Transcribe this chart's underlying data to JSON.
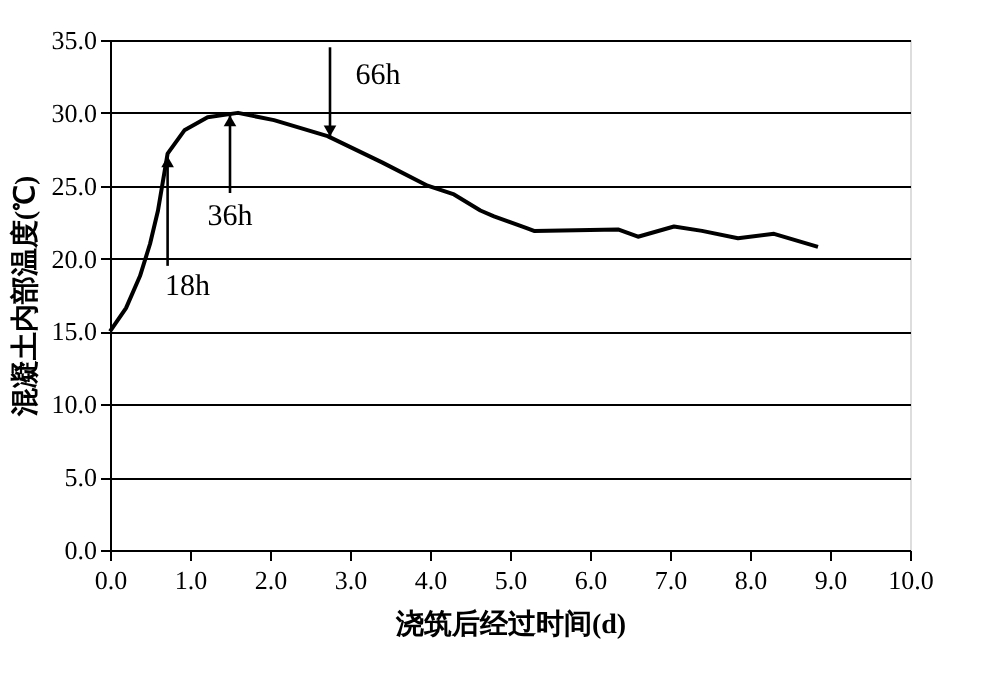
{
  "chart_data": {
    "type": "line",
    "xlabel": "浇筑后经过时间(d)",
    "ylabel": "混凝土内部温度(℃)",
    "x": [
      0,
      0.2,
      0.375,
      0.5,
      0.6,
      0.72,
      0.93,
      1.22,
      1.6,
      2.05,
      2.72,
      3.4,
      3.97,
      4.3,
      4.63,
      4.8,
      5.2,
      5.3,
      6.35,
      6.6,
      7.05,
      7.4,
      7.85,
      8.3,
      8.85
    ],
    "series": [
      {
        "color": "#000000",
        "values": [
          15,
          16.6,
          18.8,
          21,
          23.3,
          27.2,
          28.8,
          29.7,
          30,
          29.5,
          28.4,
          26.6,
          25,
          24.4,
          23.3,
          22.9,
          22.1,
          21.9,
          22,
          21.5,
          22.2,
          21.9,
          21.4,
          21.7,
          20.8
        ]
      }
    ],
    "annotations": [
      {
        "text": "18h",
        "x": 0.72,
        "y": 27.2
      },
      {
        "text": "36h",
        "x": 1.5,
        "y": 30
      },
      {
        "text": "66h",
        "x": 2.75,
        "y": 28.2
      }
    ],
    "xlim": [
      0,
      10
    ],
    "ylim": [
      0,
      35
    ],
    "xticks": [
      {
        "value": 0,
        "label": "0.0"
      },
      {
        "value": 1,
        "label": "1.0"
      },
      {
        "value": 2,
        "label": "2.0"
      },
      {
        "value": 3,
        "label": "3.0"
      },
      {
        "value": 4,
        "label": "4.0"
      },
      {
        "value": 5,
        "label": "5.0"
      },
      {
        "value": 6,
        "label": "6.0"
      },
      {
        "value": 7,
        "label": "7.0"
      },
      {
        "value": 8,
        "label": "8.0"
      },
      {
        "value": 9,
        "label": "9.0"
      },
      {
        "value": 10,
        "label": "10.0"
      }
    ],
    "yticks": [
      {
        "value": 0,
        "label": "0.0"
      },
      {
        "value": 5,
        "label": "5.0"
      },
      {
        "value": 10,
        "label": "10.0"
      },
      {
        "value": 15,
        "label": "15.0"
      },
      {
        "value": 20,
        "label": "20.0"
      },
      {
        "value": 25,
        "label": "25.0"
      },
      {
        "value": 30,
        "label": "30.0"
      },
      {
        "value": 35,
        "label": "35.0"
      }
    ],
    "grid": "y",
    "marker": "none",
    "line_style": "solid"
  }
}
